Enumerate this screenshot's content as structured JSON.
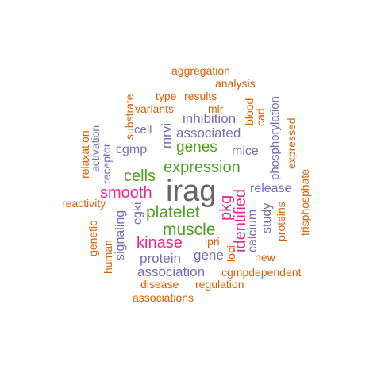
{
  "colors": {
    "orange": "#d95f02",
    "purple": "#7570b3",
    "green": "#4da023",
    "pink": "#e7298a",
    "gray": "#666666"
  },
  "words": {
    "irag": "irag",
    "expression": "expression",
    "cells": "cells",
    "smooth": "smooth",
    "platelet": "platelet",
    "muscle": "muscle",
    "genes": "genes",
    "kinase": "kinase",
    "pkg": "pkg",
    "identified": "identified",
    "aggregation": "aggregation",
    "analysis": "analysis",
    "type": "type",
    "results": "results",
    "variants": "variants",
    "mir": "mir",
    "substrate": "substrate",
    "blood": "blood",
    "cad": "cad",
    "phosphorylation": "phosphorylation",
    "relaxation": "relaxation",
    "activation": "activation",
    "receptor": "receptor",
    "cell": "cell",
    "mrvi": "mrvi",
    "inhibition": "inhibition",
    "associated": "associated",
    "cgmp": "cgmp",
    "mice": "mice",
    "expressed": "expressed",
    "trisphosphate": "trisphosphate",
    "release": "release",
    "reactivity": "reactivity",
    "genetic": "genetic",
    "signaling": "signaling",
    "cgki": "cgki",
    "human": "human",
    "protein": "protein",
    "ipri": "ipri",
    "gene": "gene",
    "loci": "loci",
    "calcium": "calcium",
    "study": "study",
    "proteins": "proteins",
    "new": "new",
    "association": "association",
    "cgmpdependent": "cgmpdependent",
    "disease": "disease",
    "regulation": "regulation",
    "associations": "associations"
  }
}
